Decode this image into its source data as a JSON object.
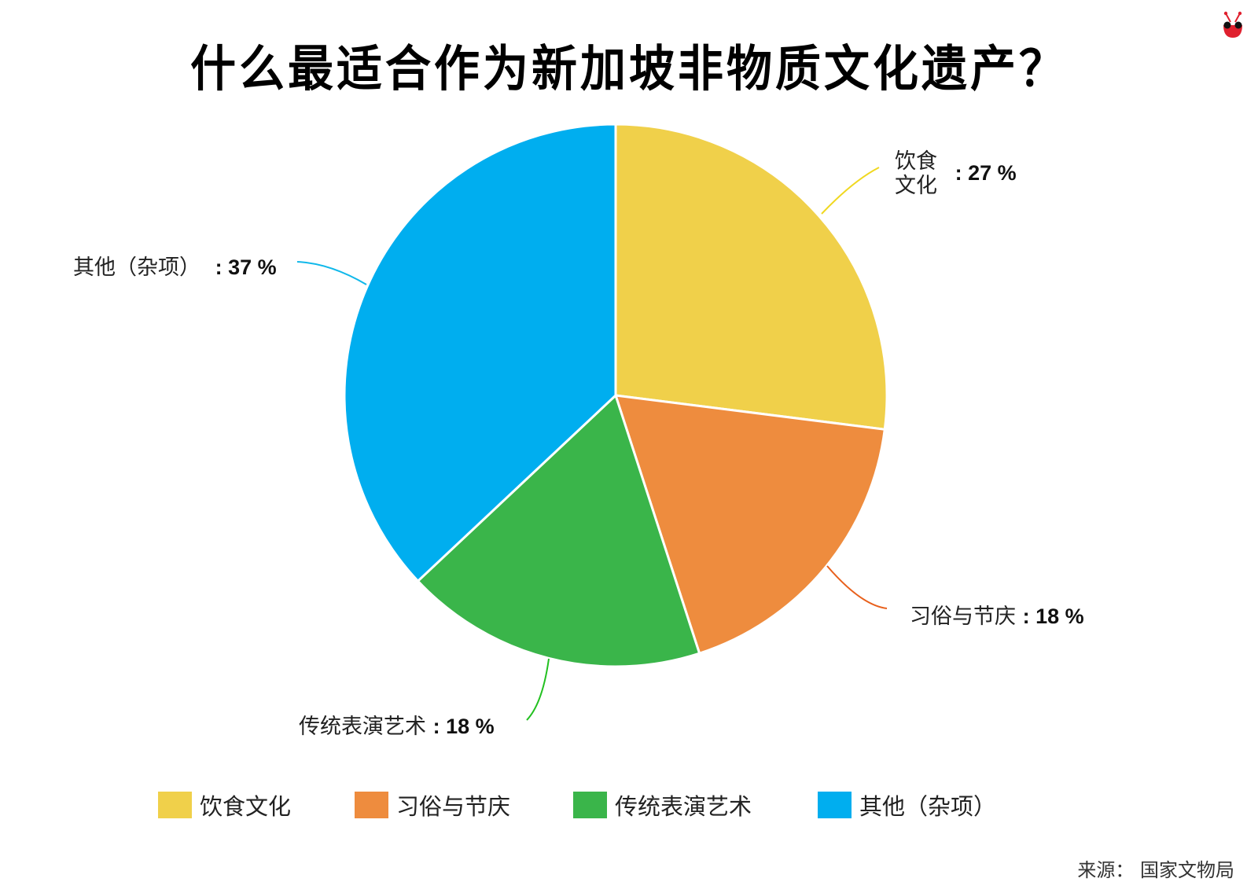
{
  "chart_data": {
    "type": "pie",
    "title": "什么最适合作为新加坡非物质文化遗产？",
    "categories": [
      "饮食文化",
      "习俗与节庆",
      "传统表演艺术",
      "其他（杂项）"
    ],
    "values": [
      27,
      18,
      18,
      37
    ],
    "unit": "%",
    "colors": [
      "#f0d04a",
      "#ee8c3e",
      "#3ab54a",
      "#00aeef"
    ],
    "legend_position": "bottom",
    "data_labels": [
      {
        "name": "饮食文化",
        "name_lines": [
          "饮食",
          "文化"
        ],
        "value": ": 27 %"
      },
      {
        "name": "习俗与节庆",
        "value": ": 18 %"
      },
      {
        "name": "传统表演艺术",
        "value": ": 18 %"
      },
      {
        "name": "其他（杂项）",
        "value": ": 37 %"
      }
    ],
    "source": "来源： 国家文物局"
  },
  "legend": [
    {
      "label": "饮食文化",
      "color": "#f0d04a"
    },
    {
      "label": "习俗与节庆",
      "color": "#ee8c3e"
    },
    {
      "label": "传统表演艺术",
      "color": "#3ab54a"
    },
    {
      "label": "其他（杂项）",
      "color": "#00aeef"
    }
  ],
  "logo": {
    "icon": "ant-mascot-icon",
    "color": "#e0202e"
  }
}
